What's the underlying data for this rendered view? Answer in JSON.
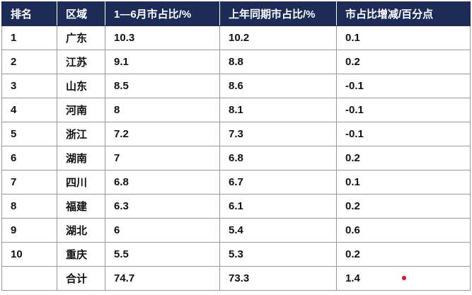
{
  "table": {
    "header": [
      "排名",
      "区域",
      "1—6月市占比/%",
      "上年同期市占比/%",
      "市占比增减/百分点"
    ],
    "rows": [
      [
        "1",
        "广东",
        "10.3",
        "10.2",
        "0.1"
      ],
      [
        "2",
        "江苏",
        "9.1",
        "8.8",
        "0.2"
      ],
      [
        "3",
        "山东",
        "8.5",
        "8.6",
        "-0.1"
      ],
      [
        "4",
        "河南",
        "8",
        "8.1",
        "-0.1"
      ],
      [
        "5",
        "浙江",
        "7.2",
        "7.3",
        "-0.1"
      ],
      [
        "6",
        "湖南",
        "7",
        "6.8",
        "0.2"
      ],
      [
        "7",
        "四川",
        "6.8",
        "6.7",
        "0.1"
      ],
      [
        "8",
        "福建",
        "6.3",
        "6.1",
        "0.2"
      ],
      [
        "9",
        "湖北",
        "6",
        "5.4",
        "0.6"
      ],
      [
        "10",
        "重庆",
        "5.5",
        "5.3",
        "0.2"
      ],
      [
        "",
        "合计",
        "74.7",
        "73.3",
        "1.4"
      ]
    ]
  }
}
